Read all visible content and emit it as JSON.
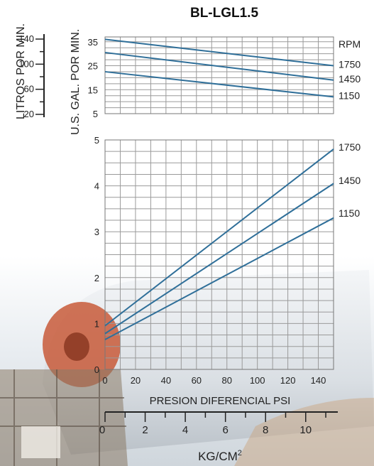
{
  "chart_data": [
    {
      "type": "line",
      "title": "BL-LGL1.5",
      "panel": "flow",
      "ylabel": "U.S. GAL. POR MIN.",
      "ylabel_secondary": "LITROS POR MIN.",
      "ylim": [
        5,
        37
      ],
      "y_ticks": [
        5,
        15,
        25,
        35
      ],
      "y_ticks_secondary": [
        20,
        60,
        100,
        140
      ],
      "xlim": [
        0,
        150
      ],
      "legend_title": "RPM",
      "grid": true,
      "series": [
        {
          "name": "1750",
          "x": [
            0,
            150
          ],
          "y": [
            36,
            25
          ]
        },
        {
          "name": "1450",
          "x": [
            0,
            150
          ],
          "y": [
            30.5,
            19
          ]
        },
        {
          "name": "1150",
          "x": [
            0,
            150
          ],
          "y": [
            22.5,
            12
          ]
        }
      ]
    },
    {
      "type": "line",
      "panel": "power",
      "ylim": [
        0,
        5
      ],
      "y_ticks": [
        0,
        1,
        2,
        3,
        4,
        5
      ],
      "xlim": [
        0,
        150
      ],
      "x_ticks": [
        0,
        20,
        40,
        60,
        80,
        100,
        120,
        140
      ],
      "xlabel": "PRESION DIFERENCIAL PSI",
      "xlabel_secondary": "KG/CM",
      "xlabel_secondary_sup": "2",
      "x_ticks_secondary": [
        0,
        2,
        4,
        6,
        8,
        10
      ],
      "grid": true,
      "series": [
        {
          "name": "1750",
          "x": [
            0,
            150
          ],
          "y": [
            0.95,
            4.8
          ]
        },
        {
          "name": "1450",
          "x": [
            0,
            150
          ],
          "y": [
            0.78,
            4.05
          ]
        },
        {
          "name": "1150",
          "x": [
            0,
            150
          ],
          "y": [
            0.65,
            3.3
          ]
        }
      ]
    }
  ]
}
